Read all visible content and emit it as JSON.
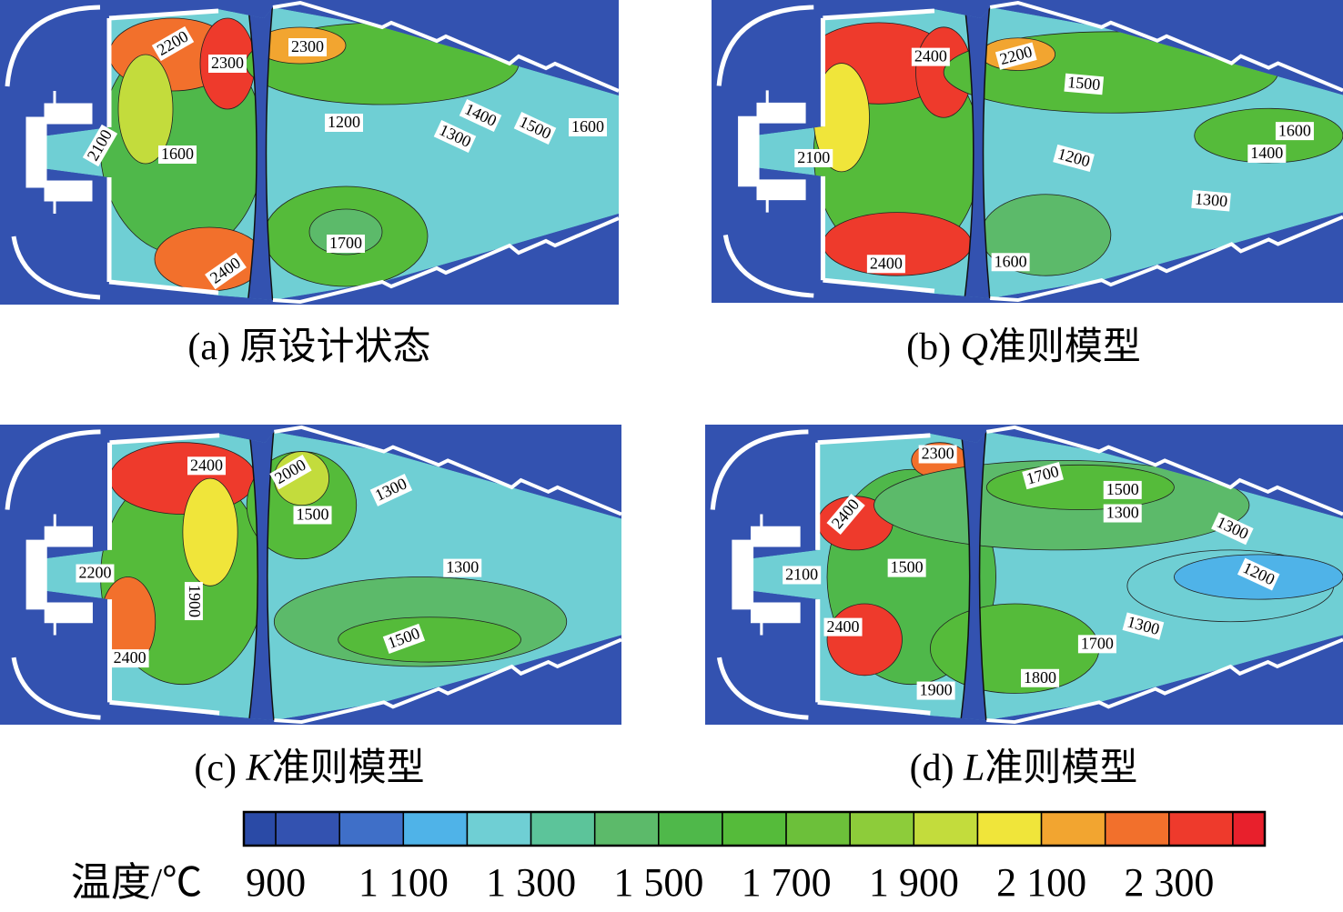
{
  "panels": [
    {
      "prefix": "(a)",
      "text": "原设计状态",
      "contour_labels": [
        2200,
        2300,
        2300,
        1200,
        1400,
        1500,
        1600,
        1300,
        2100,
        1600,
        1700,
        2400
      ]
    },
    {
      "prefix": "(b)",
      "italic": "Q",
      "text": "准则模型",
      "contour_labels": [
        2400,
        2200,
        1500,
        1600,
        1400,
        1200,
        2100,
        1300,
        2400,
        1600
      ]
    },
    {
      "prefix": "(c)",
      "italic": "K",
      "text": "准则模型",
      "contour_labels": [
        2400,
        2000,
        1300,
        1500,
        2200,
        1300,
        1900,
        1500,
        2400
      ]
    },
    {
      "prefix": "(d)",
      "italic": "L",
      "text": "准则模型",
      "contour_labels": [
        2300,
        1700,
        1500,
        1300,
        1300,
        2400,
        1500,
        2100,
        1200,
        2400,
        1300,
        1700,
        1800,
        1900
      ]
    }
  ],
  "colorbar": {
    "label": "温度/℃",
    "range": [
      850,
      2450
    ],
    "levels": [
      850,
      900,
      1000,
      1100,
      1200,
      1300,
      1400,
      1500,
      1600,
      1700,
      1800,
      1900,
      2000,
      2100,
      2200,
      2300,
      2400,
      2450
    ],
    "colors": [
      "#2a4aa6",
      "#3352b0",
      "#3f6fc8",
      "#4fb3e8",
      "#6fcfd4",
      "#5cc49a",
      "#5cba6a",
      "#4fb84a",
      "#55bb3a",
      "#6cc03a",
      "#8dcc3a",
      "#c3dc3c",
      "#f0e53a",
      "#f2a530",
      "#f2702c",
      "#ee3a2c",
      "#e8202c"
    ],
    "ticks": [
      900,
      {
        "value": 1100,
        "label": "1 100"
      },
      {
        "value": 1300,
        "label": "1 300"
      },
      {
        "value": 1500,
        "label": "1 500"
      },
      {
        "value": 1700,
        "label": "1 700"
      },
      {
        "value": 1900,
        "label": "1 900"
      },
      {
        "value": 2100,
        "label": "2 100"
      },
      {
        "value": 2300,
        "label": "2 300"
      }
    ]
  }
}
